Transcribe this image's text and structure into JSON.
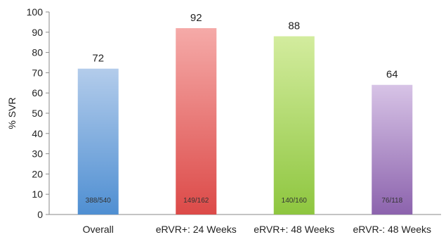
{
  "chart_data": {
    "type": "bar",
    "title": "",
    "xlabel": "",
    "ylabel": "% SVR",
    "ylim": [
      0,
      100
    ],
    "yticks": [
      0,
      10,
      20,
      30,
      40,
      50,
      60,
      70,
      80,
      90,
      100
    ],
    "grid": false,
    "legend": "none",
    "categories": [
      "Overall",
      "eRVR+: 24 Weeks",
      "eRVR+: 48 Weeks",
      "eRVR-: 48 Weeks"
    ],
    "values": [
      72,
      92,
      88,
      64
    ],
    "value_labels": [
      "72",
      "92",
      "88",
      "64"
    ],
    "inner_labels": [
      "388/540",
      "149/162",
      "140/160",
      "76/118"
    ],
    "colors": [
      {
        "top": "#b3cceb",
        "bottom": "#4f8fd2"
      },
      {
        "top": "#f5aaa8",
        "bottom": "#dc4a48"
      },
      {
        "top": "#d3ec9e",
        "bottom": "#8ec63f"
      },
      {
        "top": "#d7c3e6",
        "bottom": "#8c63ad"
      }
    ]
  }
}
